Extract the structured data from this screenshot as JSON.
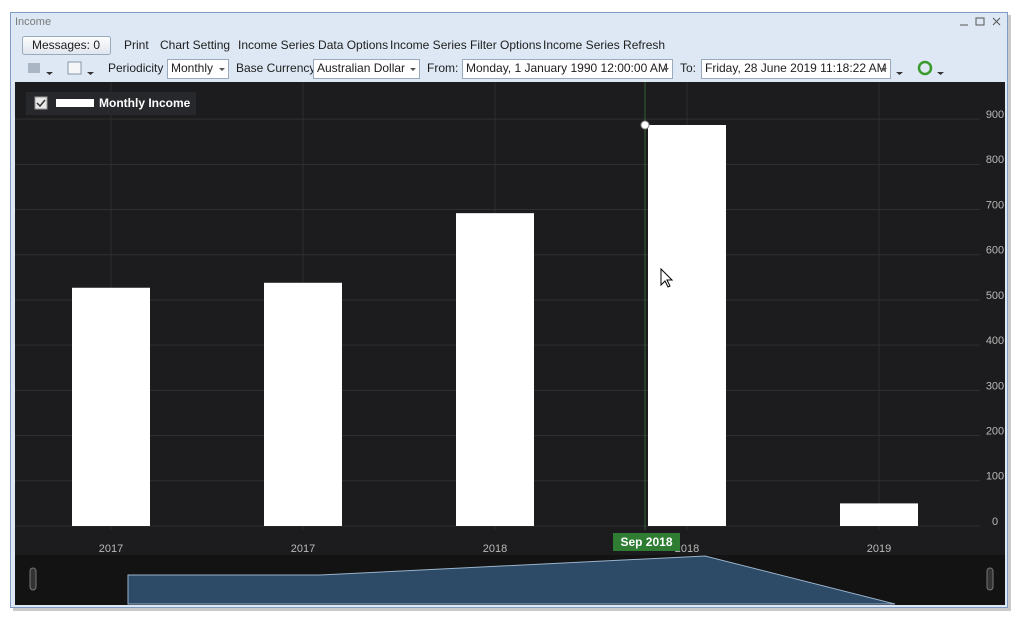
{
  "window": {
    "title": "Income"
  },
  "menu": {
    "messages": "Messages: 0",
    "items": [
      "Print",
      "Chart Setting",
      "Income Series Data Options",
      "Income Series Filter Options",
      "Income Series Refresh"
    ]
  },
  "toolbar": {
    "periodicity_label": "Periodicity",
    "periodicity": "Monthly",
    "currency_label": "Base Currency",
    "currency": "Australian Dollar",
    "from_label": "From:",
    "from": "Monday, 1 January 1990 12:00:00 AM",
    "to_label": "To:",
    "to": "Friday, 28 June 2019 11:18:22 AM"
  },
  "chart_data": {
    "type": "bar",
    "categories": [
      "2017",
      "2017",
      "2018",
      "2018",
      "2019"
    ],
    "series": [
      {
        "name": "Monthly Income",
        "color": "#ffffff",
        "values": [
          527,
          538,
          692,
          887,
          50
        ]
      }
    ],
    "ylim": [
      0,
      960
    ],
    "yticks": [
      0,
      100,
      200,
      300,
      400,
      500,
      600,
      700,
      800,
      900
    ],
    "grid": true,
    "legend": "top-left",
    "crosshair_label": "Sep 2018"
  }
}
